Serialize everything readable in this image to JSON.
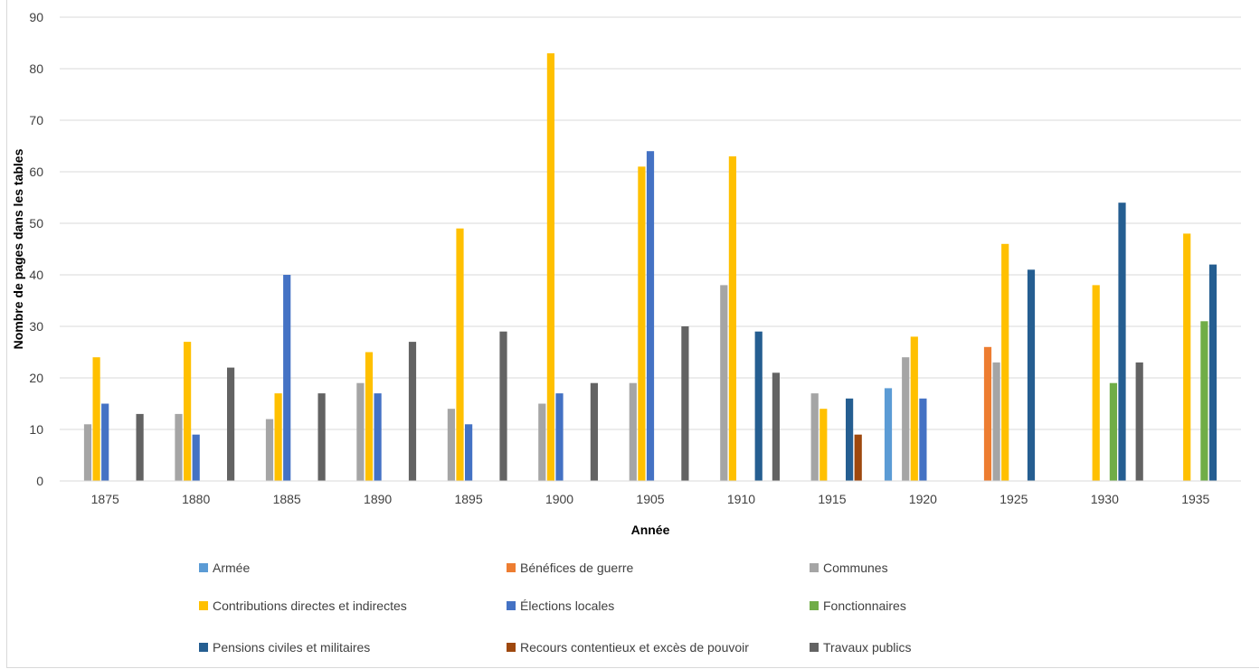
{
  "chart_data": {
    "type": "bar",
    "xlabel": "Année",
    "ylabel": "Nombre de pages  dans les tables",
    "ylim": [
      0,
      90
    ],
    "yticks": [
      0,
      10,
      20,
      30,
      40,
      50,
      60,
      70,
      80,
      90
    ],
    "grid": true,
    "legend_position": "bottom",
    "categories": [
      "1875",
      "1880",
      "1885",
      "1890",
      "1895",
      "1900",
      "1905",
      "1910",
      "1915",
      "1920",
      "1925",
      "1930",
      "1935"
    ],
    "series": [
      {
        "name": "Armée",
        "color": "#5b9bd5",
        "values": [
          null,
          null,
          null,
          null,
          null,
          null,
          null,
          null,
          null,
          18,
          null,
          null,
          null
        ]
      },
      {
        "name": "Bénéfices de guerre",
        "color": "#ed7d31",
        "values": [
          null,
          null,
          null,
          null,
          null,
          null,
          null,
          null,
          null,
          null,
          26,
          null,
          null
        ]
      },
      {
        "name": "Communes",
        "color": "#a5a5a5",
        "values": [
          11,
          13,
          12,
          19,
          14,
          15,
          19,
          38,
          17,
          24,
          23,
          null,
          null
        ]
      },
      {
        "name": "Contributions directes et indirectes",
        "color": "#ffc000",
        "values": [
          24,
          27,
          17,
          25,
          49,
          83,
          61,
          63,
          14,
          28,
          46,
          38,
          48
        ]
      },
      {
        "name": "Élections locales",
        "color": "#4472c4",
        "values": [
          15,
          9,
          40,
          17,
          11,
          17,
          64,
          null,
          null,
          16,
          null,
          null,
          null
        ]
      },
      {
        "name": "Fonctionnaires",
        "color": "#70ad47",
        "values": [
          null,
          null,
          null,
          null,
          null,
          null,
          null,
          null,
          null,
          null,
          null,
          19,
          31
        ]
      },
      {
        "name": "Pensions civiles et militaires",
        "color": "#255e91",
        "values": [
          null,
          null,
          null,
          null,
          null,
          null,
          null,
          29,
          16,
          null,
          41,
          54,
          42
        ]
      },
      {
        "name": "Recours contentieux et excès de pouvoir",
        "color": "#9e480e",
        "values": [
          null,
          null,
          null,
          null,
          null,
          null,
          null,
          null,
          9,
          null,
          null,
          null,
          null
        ]
      },
      {
        "name": "Travaux publics",
        "color": "#636363",
        "values": [
          13,
          22,
          17,
          27,
          29,
          19,
          30,
          21,
          null,
          null,
          null,
          23,
          null
        ]
      }
    ]
  }
}
